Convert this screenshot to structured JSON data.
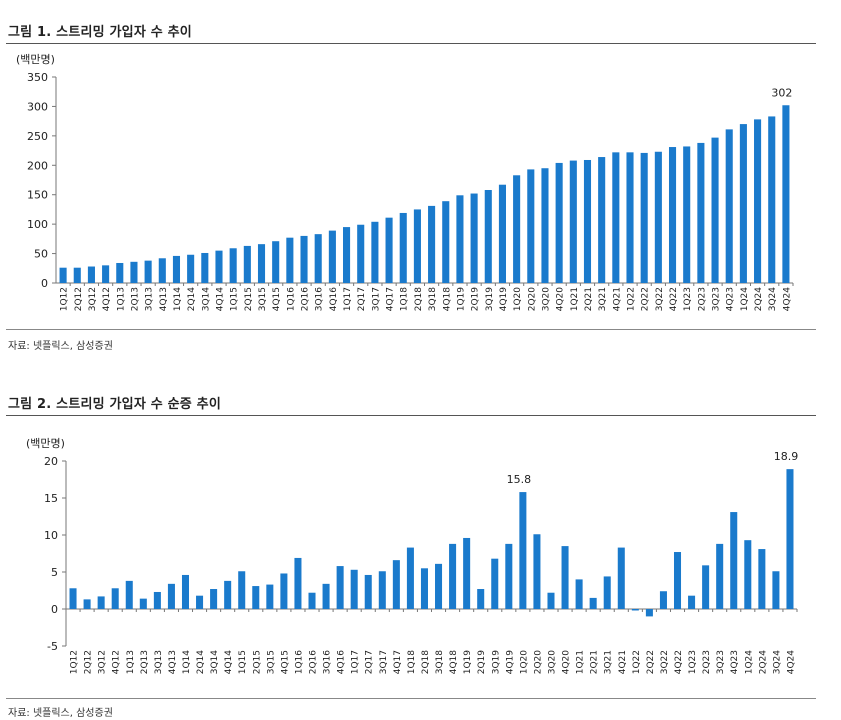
{
  "figures": [
    {
      "title": "그림 1.  스트리밍 가입자 수 추이",
      "source": "자료: 넷플릭스, 삼성증권",
      "chart_data": {
        "type": "bar",
        "unit": "(백만명)",
        "ylim": [
          0,
          350
        ],
        "yticks": [
          0,
          50,
          100,
          150,
          200,
          250,
          300,
          350
        ],
        "grid": false,
        "color": "#1a7acc",
        "categories": [
          "1Q12",
          "2Q12",
          "3Q12",
          "4Q12",
          "1Q13",
          "2Q13",
          "3Q13",
          "4Q13",
          "1Q14",
          "2Q14",
          "3Q14",
          "4Q14",
          "1Q15",
          "2Q15",
          "3Q15",
          "4Q15",
          "1Q16",
          "2Q16",
          "3Q16",
          "4Q16",
          "1Q17",
          "2Q17",
          "3Q17",
          "4Q17",
          "1Q18",
          "2Q18",
          "3Q18",
          "4Q18",
          "1Q19",
          "2Q19",
          "3Q19",
          "4Q19",
          "1Q20",
          "2Q20",
          "3Q20",
          "4Q20",
          "1Q21",
          "2Q21",
          "3Q21",
          "4Q21",
          "1Q22",
          "2Q22",
          "3Q22",
          "4Q22",
          "1Q23",
          "2Q23",
          "3Q23",
          "4Q23",
          "1Q24",
          "2Q24",
          "3Q24",
          "4Q24"
        ],
        "values": [
          26,
          26,
          28,
          30,
          34,
          36,
          38,
          42,
          46,
          48,
          51,
          55,
          59,
          63,
          66,
          71,
          77,
          80,
          83,
          89,
          95,
          99,
          104,
          111,
          119,
          125,
          131,
          139,
          149,
          152,
          158,
          167,
          183,
          193,
          195,
          204,
          208,
          209,
          214,
          222,
          222,
          221,
          223,
          231,
          232,
          238,
          247,
          261,
          270,
          278,
          283,
          302
        ],
        "labeled_points": [
          {
            "index": 51,
            "label": "302"
          }
        ]
      }
    },
    {
      "title": "그림 2.  스트리밍 가입자 수 순증 추이",
      "source": "자료: 넷플릭스, 삼성증권",
      "chart_data": {
        "type": "bar",
        "unit": "(백만명)",
        "ylim": [
          -5,
          20
        ],
        "yticks": [
          -5,
          0,
          5,
          10,
          15,
          20
        ],
        "grid": false,
        "color": "#1a7acc",
        "categories": [
          "1Q12",
          "2Q12",
          "3Q12",
          "4Q12",
          "1Q13",
          "2Q13",
          "3Q13",
          "4Q13",
          "1Q14",
          "2Q14",
          "3Q14",
          "4Q14",
          "1Q15",
          "2Q15",
          "3Q15",
          "4Q15",
          "1Q16",
          "2Q16",
          "3Q16",
          "4Q16",
          "1Q17",
          "2Q17",
          "3Q17",
          "4Q17",
          "1Q18",
          "2Q18",
          "3Q18",
          "4Q18",
          "1Q19",
          "2Q19",
          "3Q19",
          "4Q19",
          "1Q20",
          "2Q20",
          "3Q20",
          "4Q20",
          "1Q21",
          "2Q21",
          "3Q21",
          "4Q21",
          "1Q22",
          "2Q22",
          "3Q22",
          "4Q22",
          "1Q23",
          "2Q23",
          "3Q23",
          "4Q23",
          "1Q24",
          "2Q24",
          "3Q24",
          "4Q24"
        ],
        "values": [
          2.8,
          1.3,
          1.7,
          2.8,
          3.8,
          1.4,
          2.3,
          3.4,
          4.6,
          1.8,
          2.7,
          3.8,
          5.1,
          3.1,
          3.3,
          4.8,
          6.9,
          2.2,
          3.4,
          5.8,
          5.3,
          4.6,
          5.1,
          6.6,
          8.3,
          5.5,
          6.1,
          8.8,
          9.6,
          2.7,
          6.8,
          8.8,
          15.8,
          10.1,
          2.2,
          8.5,
          4.0,
          1.5,
          4.4,
          8.3,
          -0.2,
          -1.0,
          2.4,
          7.7,
          1.8,
          5.9,
          8.8,
          13.1,
          9.3,
          8.1,
          5.1,
          18.9
        ],
        "labeled_points": [
          {
            "index": 32,
            "label": "15.8"
          },
          {
            "index": 51,
            "label": "18.9"
          }
        ]
      }
    }
  ]
}
